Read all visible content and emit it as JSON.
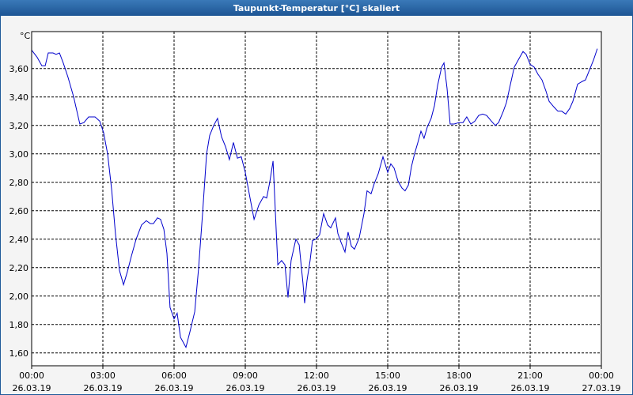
{
  "chart_data": {
    "type": "line",
    "title": "Taupunkt-Temperatur [°C] skaliert",
    "y_label": "°C",
    "color": "#0000cc",
    "grid": true,
    "xlim": [
      0,
      24
    ],
    "xticks": [
      {
        "value": 0,
        "label": "00:00 26.03.19"
      },
      {
        "value": 3,
        "label": "03:00 26.03.19"
      },
      {
        "value": 6,
        "label": "06:00 26.03.19"
      },
      {
        "value": 9,
        "label": "09:00 26.03.19"
      },
      {
        "value": 12,
        "label": "12:00 26.03.19"
      },
      {
        "value": 15,
        "label": "15:00 26.03.19"
      },
      {
        "value": 18,
        "label": "18:00 26.03.19"
      },
      {
        "value": 21,
        "label": "21:00 26.03.19"
      },
      {
        "value": 24,
        "label": "00:00 27.03.19"
      }
    ],
    "ylim": [
      1.51,
      3.86
    ],
    "yticks": [
      {
        "value": 1.6,
        "label": "1,60"
      },
      {
        "value": 1.8,
        "label": "1,80"
      },
      {
        "value": 2.0,
        "label": "2,00"
      },
      {
        "value": 2.2,
        "label": "2,20"
      },
      {
        "value": 2.4,
        "label": "2,40"
      },
      {
        "value": 2.6,
        "label": "2,60"
      },
      {
        "value": 2.8,
        "label": "2,80"
      },
      {
        "value": 3.0,
        "label": "3,00"
      },
      {
        "value": 3.2,
        "label": "3,20"
      },
      {
        "value": 3.4,
        "label": "3,40"
      },
      {
        "value": 3.6,
        "label": "3,60"
      }
    ],
    "x": [
      0,
      0.23,
      0.43,
      0.57,
      0.7,
      0.9,
      1.03,
      1.17,
      1.33,
      1.53,
      1.77,
      2.03,
      2.2,
      2.4,
      2.67,
      2.87,
      3.03,
      3.2,
      3.37,
      3.53,
      3.7,
      3.87,
      4.03,
      4.2,
      4.4,
      4.63,
      4.83,
      5.0,
      5.13,
      5.3,
      5.43,
      5.57,
      5.7,
      5.83,
      6.0,
      6.13,
      6.27,
      6.5,
      6.67,
      6.87,
      7.03,
      7.2,
      7.37,
      7.5,
      7.67,
      7.83,
      8.0,
      8.17,
      8.33,
      8.5,
      8.67,
      8.83,
      9.0,
      9.2,
      9.37,
      9.57,
      9.77,
      9.9,
      10.03,
      10.17,
      10.3,
      10.37,
      10.53,
      10.67,
      10.8,
      10.93,
      11.13,
      11.27,
      11.43,
      11.5,
      11.6,
      11.73,
      11.83,
      11.97,
      12.13,
      12.3,
      12.47,
      12.6,
      12.8,
      12.9,
      13.03,
      13.2,
      13.33,
      13.47,
      13.6,
      13.8,
      14.0,
      14.13,
      14.3,
      14.43,
      14.6,
      14.8,
      15.0,
      15.13,
      15.27,
      15.43,
      15.6,
      15.73,
      15.87,
      16.0,
      16.13,
      16.27,
      16.4,
      16.53,
      16.67,
      16.83,
      16.97,
      17.1,
      17.27,
      17.37,
      17.5,
      17.63,
      17.8,
      18.0,
      18.17,
      18.33,
      18.5,
      18.67,
      18.83,
      19.0,
      19.17,
      19.37,
      19.53,
      19.67,
      19.87,
      20.0,
      20.17,
      20.33,
      20.53,
      20.7,
      20.83,
      21.0,
      21.17,
      21.33,
      21.5,
      21.67,
      21.8,
      22.0,
      22.17,
      22.33,
      22.5,
      22.67,
      22.8,
      23.0,
      23.2,
      23.33,
      23.5,
      23.67,
      23.83
    ],
    "values": [
      3.73,
      3.68,
      3.62,
      3.62,
      3.71,
      3.71,
      3.7,
      3.71,
      3.64,
      3.54,
      3.4,
      3.21,
      3.22,
      3.26,
      3.26,
      3.23,
      3.15,
      3.0,
      2.75,
      2.44,
      2.18,
      2.08,
      2.17,
      2.28,
      2.4,
      2.5,
      2.53,
      2.51,
      2.51,
      2.55,
      2.54,
      2.47,
      2.3,
      1.92,
      1.84,
      1.88,
      1.71,
      1.64,
      1.75,
      1.89,
      2.19,
      2.58,
      3.0,
      3.13,
      3.2,
      3.25,
      3.12,
      3.05,
      2.96,
      3.08,
      2.97,
      2.98,
      2.87,
      2.69,
      2.54,
      2.64,
      2.7,
      2.69,
      2.8,
      2.95,
      2.47,
      2.22,
      2.25,
      2.22,
      1.99,
      2.25,
      2.4,
      2.36,
      2.09,
      1.95,
      2.11,
      2.25,
      2.39,
      2.4,
      2.43,
      2.58,
      2.5,
      2.48,
      2.55,
      2.44,
      2.38,
      2.31,
      2.45,
      2.35,
      2.33,
      2.41,
      2.58,
      2.74,
      2.72,
      2.79,
      2.86,
      2.98,
      2.87,
      2.93,
      2.9,
      2.81,
      2.76,
      2.74,
      2.78,
      2.91,
      3.0,
      3.08,
      3.16,
      3.11,
      3.19,
      3.25,
      3.34,
      3.48,
      3.61,
      3.64,
      3.46,
      3.21,
      3.21,
      3.22,
      3.22,
      3.26,
      3.21,
      3.23,
      3.27,
      3.28,
      3.27,
      3.23,
      3.2,
      3.22,
      3.3,
      3.36,
      3.49,
      3.61,
      3.67,
      3.72,
      3.7,
      3.63,
      3.61,
      3.56,
      3.52,
      3.44,
      3.37,
      3.33,
      3.3,
      3.3,
      3.28,
      3.32,
      3.37,
      3.49,
      3.51,
      3.52,
      3.59,
      3.66,
      3.74
    ]
  }
}
